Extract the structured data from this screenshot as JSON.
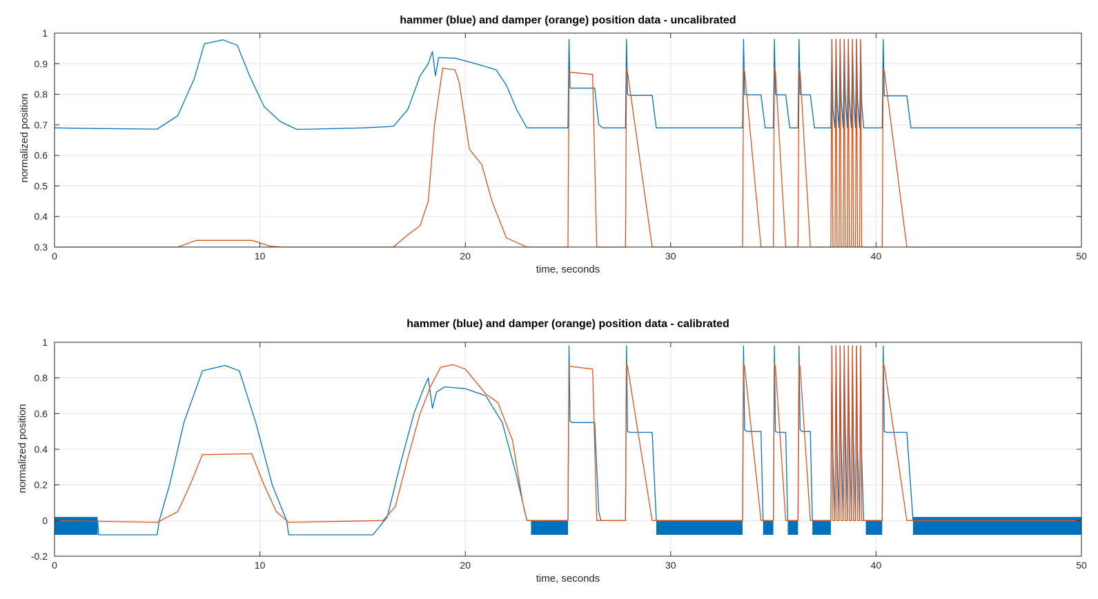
{
  "chart_data": [
    {
      "type": "line",
      "title": "hammer (blue) and damper (orange) position data - uncalibrated",
      "xlabel": "time, seconds",
      "ylabel": "normalized position",
      "xlim": [
        0,
        50
      ],
      "ylim": [
        0.3,
        1
      ],
      "xticks": [
        0,
        10,
        20,
        30,
        40,
        50
      ],
      "yticks": [
        0.3,
        0.4,
        0.5,
        0.6,
        0.7,
        0.8,
        0.9,
        1
      ],
      "grid": true,
      "series": [
        {
          "color": "#0072BD",
          "x": [
            0,
            2,
            5,
            6,
            6.8,
            7.3,
            8.2,
            8.9,
            9.5,
            10.2,
            11,
            11.8,
            12.5,
            15,
            16.5,
            17.2,
            17.8,
            18.2,
            18.4,
            18.55,
            18.7,
            19.5,
            20.5,
            21.5,
            22,
            22.5,
            23,
            25,
            25.05,
            25.1,
            25.2,
            26.3,
            26.5,
            26.7,
            27.8,
            27.85,
            27.9,
            28,
            29.1,
            29.3,
            33.5,
            33.55,
            33.6,
            33.7,
            34.4,
            34.6,
            35,
            35.05,
            35.1,
            35.2,
            35.6,
            35.8,
            36.2,
            36.25,
            36.3,
            36.4,
            36.8,
            37,
            37.8,
            37.85,
            37.9,
            38.0,
            38.05,
            38.1,
            38.2,
            38.25,
            38.3,
            38.4,
            38.45,
            38.5,
            38.6,
            38.65,
            38.7,
            38.8,
            38.85,
            38.9,
            39.0,
            39.05,
            39.1,
            39.2,
            39.25,
            39.3,
            39.4,
            40.3,
            40.35,
            40.4,
            40.5,
            41.5,
            41.7,
            50
          ],
          "y": [
            0.69,
            0.688,
            0.686,
            0.73,
            0.85,
            0.965,
            0.978,
            0.96,
            0.86,
            0.76,
            0.71,
            0.685,
            0.686,
            0.69,
            0.695,
            0.75,
            0.86,
            0.9,
            0.94,
            0.86,
            0.92,
            0.918,
            0.9,
            0.88,
            0.83,
            0.75,
            0.69,
            0.69,
            0.98,
            0.82,
            0.82,
            0.82,
            0.7,
            0.69,
            0.69,
            0.98,
            0.8,
            0.796,
            0.796,
            0.69,
            0.69,
            0.98,
            0.8,
            0.798,
            0.798,
            0.69,
            0.69,
            0.98,
            0.8,
            0.798,
            0.798,
            0.69,
            0.69,
            0.98,
            0.8,
            0.798,
            0.798,
            0.69,
            0.69,
            0.98,
            0.75,
            0.69,
            0.98,
            0.77,
            0.69,
            0.98,
            0.78,
            0.69,
            0.98,
            0.8,
            0.69,
            0.98,
            0.79,
            0.69,
            0.98,
            0.8,
            0.69,
            0.98,
            0.78,
            0.69,
            0.98,
            0.77,
            0.69,
            0.69,
            0.98,
            0.795,
            0.795,
            0.795,
            0.69,
            0.69
          ]
        },
        {
          "color": "#D95319",
          "x": [
            0,
            6,
            6.9,
            9.6,
            10.5,
            11,
            16.5,
            17.2,
            17.8,
            18.2,
            18.5,
            18.9,
            19.5,
            19.7,
            20.2,
            20.8,
            21.3,
            22,
            23,
            25,
            25.05,
            25.1,
            26.2,
            26.4,
            27.8,
            27.85,
            27.9,
            29.1,
            33.5,
            33.55,
            33.6,
            34.4,
            35,
            35.05,
            35.1,
            35.6,
            36.2,
            36.25,
            36.3,
            36.8,
            37.8,
            37.85,
            37.9,
            38.0,
            38.05,
            38.1,
            38.2,
            38.25,
            38.3,
            38.4,
            38.45,
            38.5,
            38.6,
            38.65,
            38.7,
            38.8,
            38.85,
            38.9,
            39.0,
            39.05,
            39.1,
            39.2,
            39.25,
            39.3,
            40.3,
            40.35,
            40.4,
            41.5,
            50
          ],
          "y": [
            0.3,
            0.3,
            0.322,
            0.322,
            0.303,
            0.3,
            0.3,
            0.34,
            0.37,
            0.45,
            0.7,
            0.885,
            0.88,
            0.84,
            0.62,
            0.57,
            0.45,
            0.33,
            0.3,
            0.3,
            0.875,
            0.872,
            0.865,
            0.3,
            0.3,
            0.885,
            0.872,
            0.3,
            0.3,
            0.885,
            0.875,
            0.3,
            0.3,
            0.885,
            0.875,
            0.3,
            0.3,
            0.885,
            0.875,
            0.3,
            0.3,
            0.98,
            0.3,
            0.3,
            0.98,
            0.3,
            0.3,
            0.98,
            0.3,
            0.3,
            0.98,
            0.3,
            0.3,
            0.98,
            0.3,
            0.3,
            0.98,
            0.3,
            0.3,
            0.98,
            0.3,
            0.3,
            0.98,
            0.3,
            0.3,
            0.885,
            0.878,
            0.3,
            0.3
          ]
        }
      ]
    },
    {
      "type": "line",
      "title": "hammer (blue) and damper (orange) position data - calibrated",
      "xlabel": "time, seconds",
      "ylabel": "normalized position",
      "xlim": [
        0,
        50
      ],
      "ylim": [
        -0.2,
        1
      ],
      "xticks": [
        0,
        10,
        20,
        30,
        40,
        50
      ],
      "yticks": [
        -0.2,
        0,
        0.2,
        0.4,
        0.6,
        0.8,
        1
      ],
      "grid": true,
      "noise_bands": [
        {
          "color": "#0072BD",
          "x": [
            0,
            2.1
          ],
          "y": [
            -0.08,
            0.02
          ]
        },
        {
          "color": "#0072BD",
          "x": [
            23.2,
            25
          ],
          "y": [
            -0.08,
            0
          ]
        },
        {
          "color": "#0072BD",
          "x": [
            29.3,
            33.5
          ],
          "y": [
            -0.08,
            0
          ]
        },
        {
          "color": "#0072BD",
          "x": [
            34.5,
            35
          ],
          "y": [
            -0.08,
            0
          ]
        },
        {
          "color": "#0072BD",
          "x": [
            35.7,
            36.2
          ],
          "y": [
            -0.08,
            0
          ]
        },
        {
          "color": "#0072BD",
          "x": [
            36.9,
            37.8
          ],
          "y": [
            -0.08,
            0
          ]
        },
        {
          "color": "#0072BD",
          "x": [
            39.5,
            40.3
          ],
          "y": [
            -0.08,
            0
          ]
        },
        {
          "color": "#0072BD",
          "x": [
            41.8,
            50
          ],
          "y": [
            -0.08,
            0.02
          ]
        }
      ],
      "series": [
        {
          "color": "#0072BD",
          "x": [
            0,
            2.1,
            2.15,
            5,
            5.1,
            5.6,
            6.3,
            7.2,
            8.3,
            9,
            9.8,
            10.6,
            11.3,
            11.4,
            15.5,
            16.2,
            16.8,
            17.5,
            18,
            18.2,
            18.4,
            18.6,
            19,
            20,
            21,
            21.8,
            22.5,
            23,
            25,
            25.05,
            25.1,
            25.2,
            26.3,
            26.5,
            26.6,
            27.8,
            27.85,
            27.9,
            28,
            29.1,
            29.3,
            33.5,
            33.55,
            33.6,
            33.7,
            34.4,
            34.5,
            35,
            35.05,
            35.1,
            35.2,
            35.6,
            35.7,
            36.2,
            36.25,
            36.3,
            36.4,
            36.8,
            36.9,
            37.8,
            37.85,
            37.9,
            38.0,
            38.05,
            38.1,
            38.2,
            38.25,
            38.3,
            38.4,
            38.45,
            38.5,
            38.6,
            38.65,
            38.7,
            38.8,
            38.85,
            38.9,
            39.0,
            39.05,
            39.1,
            39.2,
            39.25,
            39.3,
            39.4,
            40.3,
            40.35,
            40.4,
            40.5,
            41.5,
            41.8,
            50
          ],
          "y": [
            0,
            0,
            -0.08,
            -0.08,
            0,
            0.2,
            0.55,
            0.84,
            0.87,
            0.84,
            0.55,
            0.2,
            0,
            -0.08,
            -0.08,
            0.02,
            0.3,
            0.6,
            0.75,
            0.8,
            0.63,
            0.72,
            0.75,
            0.74,
            0.7,
            0.55,
            0.25,
            0,
            0,
            0.98,
            0.56,
            0.55,
            0.55,
            0.05,
            0,
            0,
            0.98,
            0.5,
            0.495,
            0.495,
            0,
            0,
            0.98,
            0.51,
            0.5,
            0.5,
            0,
            0,
            0.98,
            0.5,
            0.495,
            0.495,
            0,
            0,
            0.98,
            0.51,
            0.5,
            0.5,
            0,
            0,
            0.98,
            0.35,
            0,
            0.98,
            0.4,
            0,
            0.98,
            0.45,
            0,
            0.98,
            0.52,
            0,
            0.98,
            0.5,
            0,
            0.98,
            0.45,
            0,
            0.98,
            0.4,
            0,
            0.98,
            0.35,
            0,
            0,
            0.98,
            0.5,
            0.495,
            0.495,
            0,
            0
          ]
        },
        {
          "color": "#D95319",
          "x": [
            0,
            5,
            6,
            6.6,
            7.2,
            9.6,
            10.2,
            10.8,
            11.4,
            16,
            16.6,
            17.2,
            17.8,
            18.3,
            18.8,
            19.4,
            20,
            21,
            21.6,
            22.3,
            22.8,
            23,
            25,
            25.05,
            25.1,
            26.2,
            26.4,
            27.8,
            27.85,
            27.9,
            29.1,
            33.5,
            33.55,
            33.6,
            34.4,
            35,
            35.05,
            35.1,
            35.6,
            36.2,
            36.25,
            36.3,
            36.8,
            37.8,
            37.85,
            37.9,
            38.0,
            38.05,
            38.1,
            38.2,
            38.25,
            38.3,
            38.4,
            38.45,
            38.5,
            38.6,
            38.65,
            38.7,
            38.8,
            38.85,
            38.9,
            39.0,
            39.05,
            39.1,
            39.2,
            39.25,
            39.3,
            40.3,
            40.35,
            40.4,
            41.5,
            50
          ],
          "y": [
            0,
            -0.01,
            0.05,
            0.2,
            0.37,
            0.375,
            0.2,
            0.05,
            -0.01,
            0,
            0.08,
            0.35,
            0.6,
            0.75,
            0.86,
            0.875,
            0.85,
            0.71,
            0.66,
            0.45,
            0.1,
            0,
            0,
            0.87,
            0.865,
            0.85,
            0,
            0,
            0.88,
            0.865,
            0,
            0,
            0.88,
            0.865,
            0,
            0,
            0.88,
            0.865,
            0,
            0,
            0.88,
            0.865,
            0,
            0,
            0.98,
            0,
            0,
            0.98,
            0,
            0,
            0.98,
            0,
            0,
            0.98,
            0,
            0,
            0.98,
            0,
            0,
            0.98,
            0,
            0,
            0.98,
            0,
            0,
            0.98,
            0,
            0,
            0.88,
            0.865,
            0,
            0
          ]
        }
      ]
    }
  ]
}
